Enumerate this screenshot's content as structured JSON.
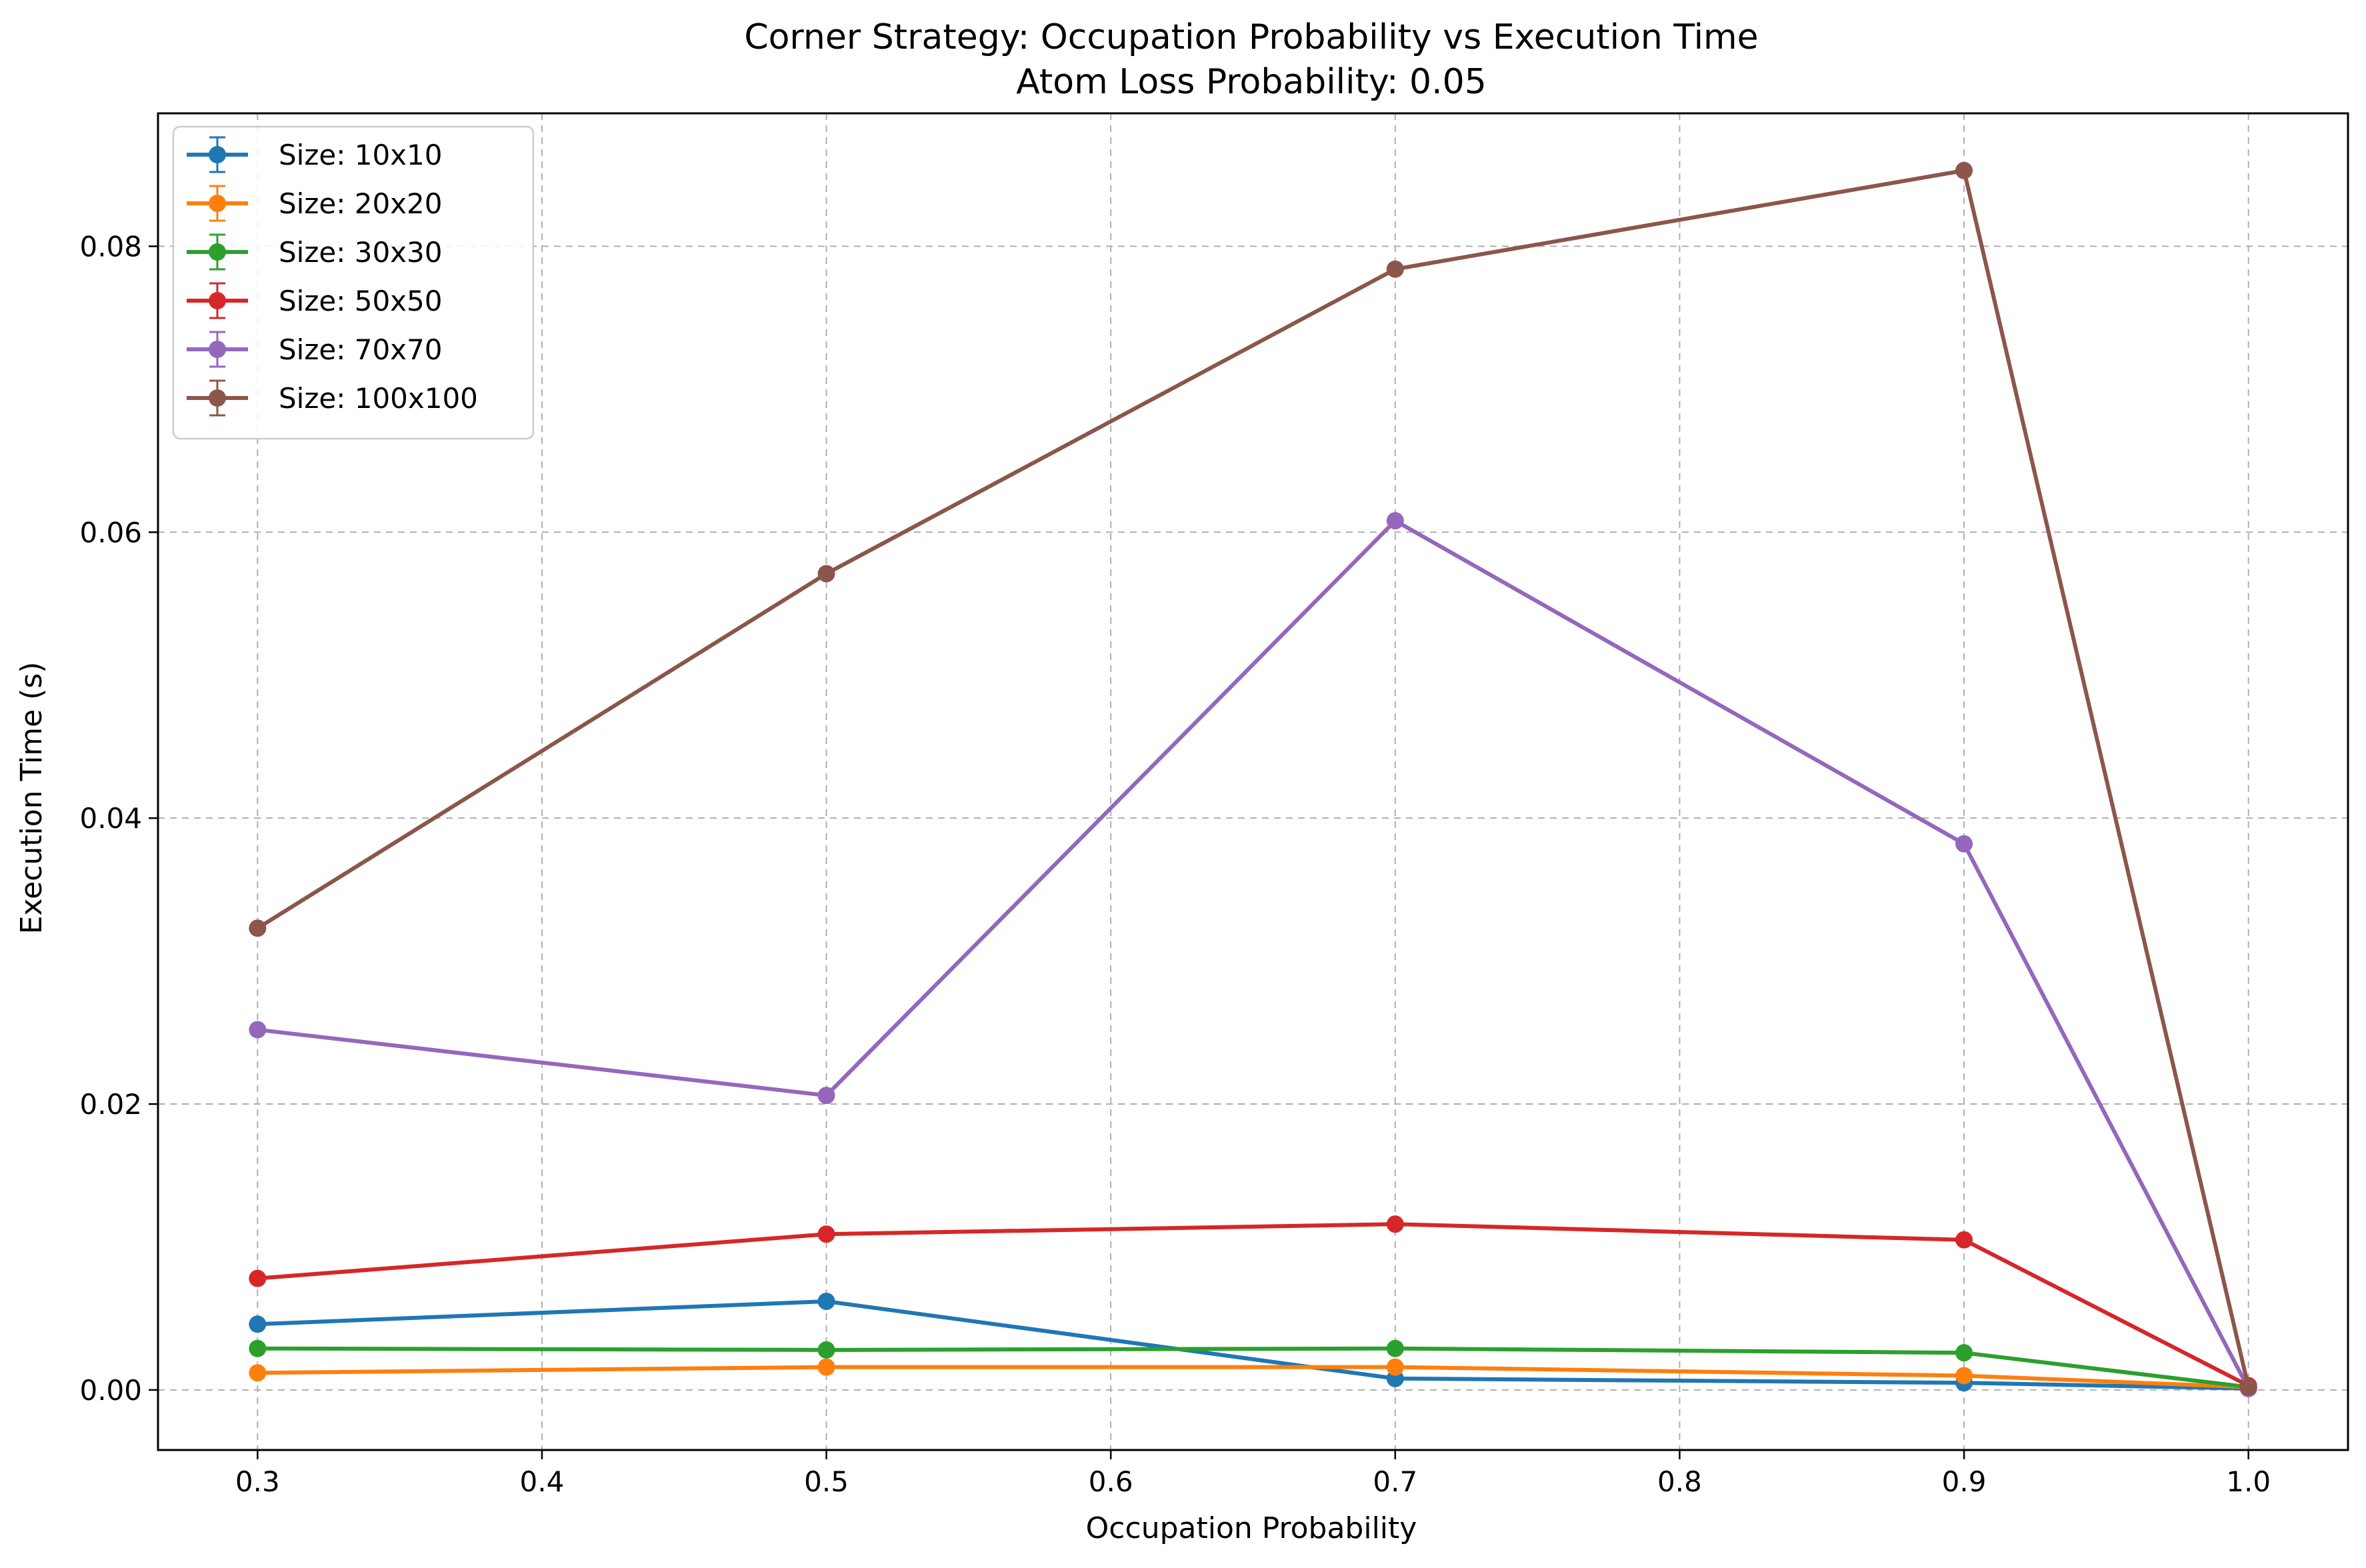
{
  "chart_data": {
    "type": "line",
    "title": "Corner Strategy: Occupation Probability vs Execution Time",
    "subtitle": "Atom Loss Probability: 0.05",
    "xlabel": "Occupation Probability",
    "ylabel": "Execution Time (s)",
    "xlim": [
      0.265,
      1.035
    ],
    "ylim": [
      -0.0042,
      0.0893
    ],
    "xticks": [
      0.3,
      0.4,
      0.5,
      0.6,
      0.7,
      0.8,
      0.9,
      1.0
    ],
    "xtick_labels": [
      "0.3",
      "0.4",
      "0.5",
      "0.6",
      "0.7",
      "0.8",
      "0.9",
      "1.0"
    ],
    "yticks": [
      0.0,
      0.02,
      0.04,
      0.06,
      0.08
    ],
    "ytick_labels": [
      "0.00",
      "0.02",
      "0.04",
      "0.06",
      "0.08"
    ],
    "grid": true,
    "legend_position": "top-left",
    "x": [
      0.3,
      0.5,
      0.7,
      0.9,
      1.0
    ],
    "series": [
      {
        "name": "Size: 10x10",
        "color": "#1f77b4",
        "values": [
          0.0046,
          0.0062,
          0.0008,
          0.0005,
          0.0001
        ]
      },
      {
        "name": "Size: 20x20",
        "color": "#ff7f0e",
        "values": [
          0.0012,
          0.0016,
          0.0016,
          0.001,
          0.0002
        ]
      },
      {
        "name": "Size: 30x30",
        "color": "#2ca02c",
        "values": [
          0.0029,
          0.0028,
          0.0029,
          0.0026,
          0.0002
        ]
      },
      {
        "name": "Size: 50x50",
        "color": "#d62728",
        "values": [
          0.0078,
          0.0109,
          0.0116,
          0.0105,
          0.0003
        ]
      },
      {
        "name": "Size: 70x70",
        "color": "#9467bd",
        "values": [
          0.0252,
          0.0206,
          0.0608,
          0.0382,
          0.0001
        ]
      },
      {
        "name": "Size: 100x100",
        "color": "#8c564b",
        "values": [
          0.0323,
          0.0571,
          0.0784,
          0.0853,
          0.0002
        ]
      }
    ]
  }
}
